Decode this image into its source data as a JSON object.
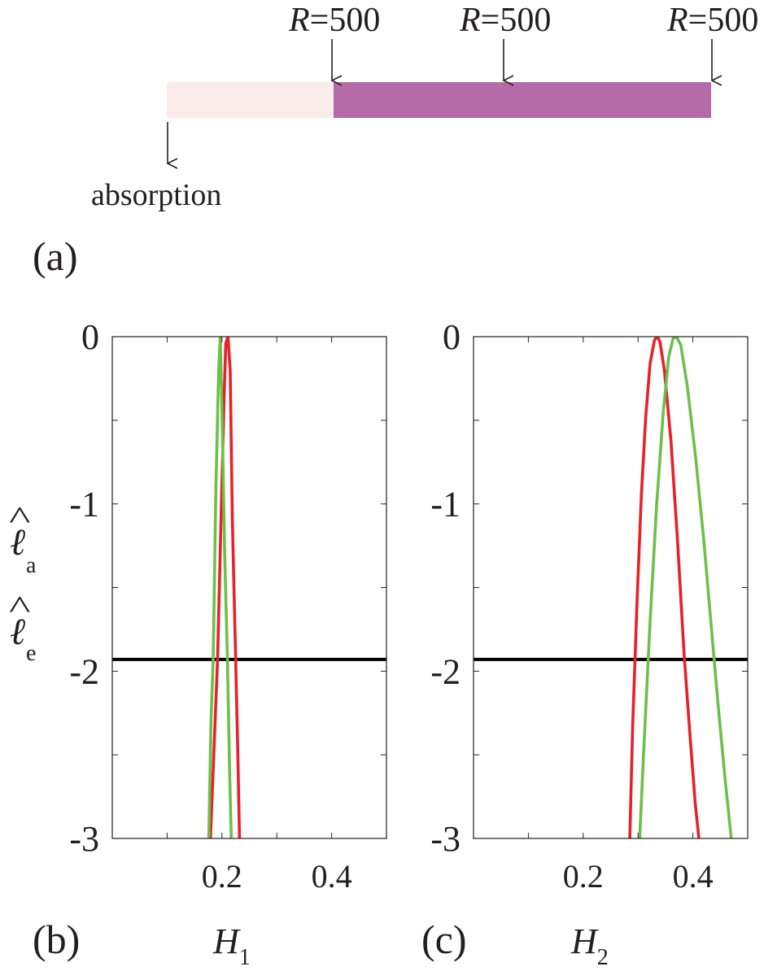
{
  "panel_a": {
    "label": "(a)",
    "arrow_labels": [
      {
        "prefix": "R",
        "value": "=500"
      },
      {
        "prefix": "R",
        "value": "=500"
      },
      {
        "prefix": "R",
        "value": "=500"
      }
    ],
    "absorption_label": "absorption",
    "colors": {
      "absorption": "#fbecec",
      "medium": "#b56ba8",
      "arrow": "#231f20"
    }
  },
  "y_axis_label": {
    "symbol_a": "ℓ",
    "sub_a": "a",
    "symbol_e": "ℓ",
    "sub_e": "e",
    "hat": "^"
  },
  "chart_data": [
    {
      "type": "line",
      "panel_label": "(b)",
      "xlabel": "H",
      "xlabel_sub": "1",
      "xlim": [
        0,
        0.5
      ],
      "ylim": [
        -3,
        0
      ],
      "x_ticks": [
        0.2,
        0.4
      ],
      "x_tick_labels": [
        "0.2",
        "0.4"
      ],
      "y_ticks": [
        0,
        -1,
        -2,
        -3
      ],
      "y_tick_labels": [
        "0",
        "-1",
        "-2",
        "-3"
      ],
      "hline": {
        "y": -1.93,
        "color": "#000000"
      },
      "series": [
        {
          "color": "#e8202a",
          "x": [
            0.179,
            0.192,
            0.199,
            0.204,
            0.207,
            0.211,
            0.215,
            0.219,
            0.225,
            0.229,
            0.232
          ],
          "y": [
            -3.0,
            -1.93,
            -1.0,
            -0.35,
            -0.04,
            0.0,
            -0.2,
            -1.1,
            -1.93,
            -2.5,
            -3.0
          ]
        },
        {
          "color": "#6cc04a",
          "x": [
            0.176,
            0.18,
            0.184,
            0.189,
            0.194,
            0.197,
            0.201,
            0.205,
            0.21,
            0.214,
            0.217
          ],
          "y": [
            -3.0,
            -2.3,
            -1.93,
            -0.9,
            -0.2,
            0.0,
            -0.6,
            -1.3,
            -1.93,
            -2.6,
            -3.0
          ]
        }
      ]
    },
    {
      "type": "line",
      "panel_label": "(c)",
      "xlabel": "H",
      "xlabel_sub": "2",
      "xlim": [
        0,
        0.5
      ],
      "ylim": [
        -3,
        0
      ],
      "x_ticks": [
        0.2,
        0.4
      ],
      "x_tick_labels": [
        "0.2",
        "0.4"
      ],
      "y_ticks": [
        0,
        -1,
        -2,
        -3
      ],
      "y_tick_labels": [
        "0",
        "-1",
        "-2",
        "-3"
      ],
      "hline": {
        "y": -1.93,
        "color": "#000000"
      },
      "series": [
        {
          "color": "#e8202a",
          "x": [
            0.285,
            0.29,
            0.298,
            0.306,
            0.314,
            0.322,
            0.33,
            0.335,
            0.34,
            0.348,
            0.36,
            0.372,
            0.384,
            0.394,
            0.404,
            0.411
          ],
          "y": [
            -3.0,
            -2.35,
            -1.6,
            -0.95,
            -0.48,
            -0.16,
            -0.02,
            0.0,
            -0.03,
            -0.2,
            -0.62,
            -1.22,
            -1.9,
            -2.35,
            -2.78,
            -3.0
          ]
        },
        {
          "color": "#6cc04a",
          "x": [
            0.303,
            0.31,
            0.322,
            0.334,
            0.346,
            0.356,
            0.364,
            0.37,
            0.378,
            0.39,
            0.405,
            0.42,
            0.434,
            0.446,
            0.458,
            0.47
          ],
          "y": [
            -3.0,
            -2.5,
            -1.7,
            -1.0,
            -0.45,
            -0.12,
            -0.01,
            0.0,
            -0.05,
            -0.3,
            -0.72,
            -1.22,
            -1.75,
            -2.2,
            -2.62,
            -3.0
          ]
        }
      ]
    }
  ]
}
